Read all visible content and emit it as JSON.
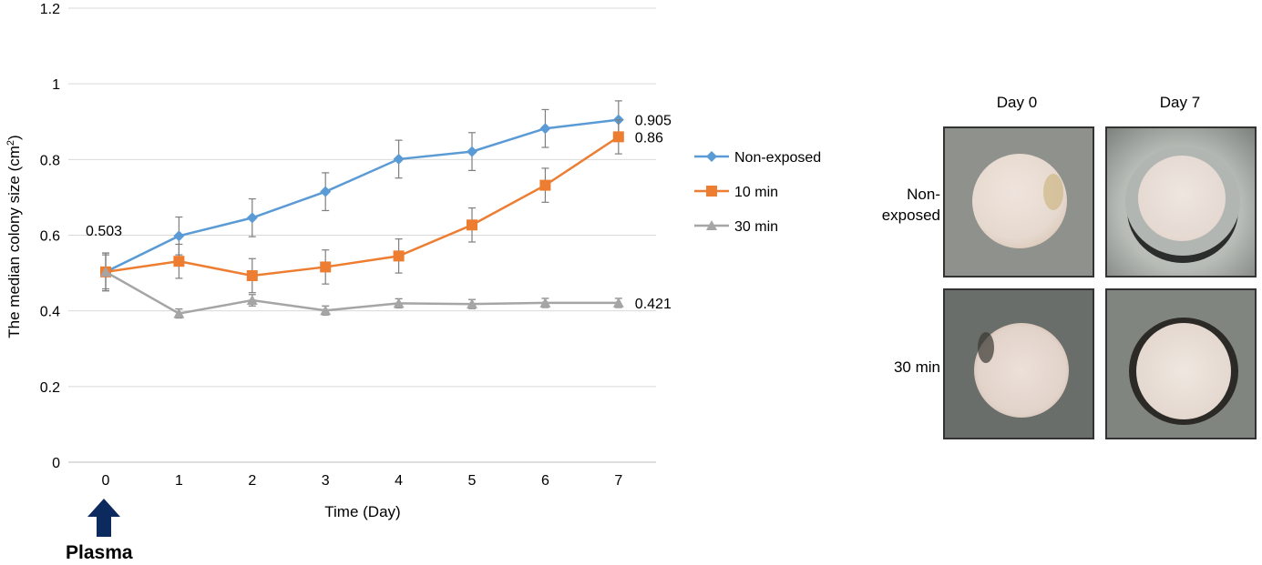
{
  "chart_data": {
    "type": "line",
    "xlabel": "Time (Day)",
    "ylabel_main": "The median colony size (cm",
    "ylabel_sup": "2",
    "ylabel_end": ")",
    "x": [
      0,
      1,
      2,
      3,
      4,
      5,
      6,
      7
    ],
    "ylim": [
      0,
      1.2
    ],
    "yticks": [
      0,
      0.2,
      0.4,
      0.6,
      0.8,
      1,
      1.2
    ],
    "ytick_labels": [
      "0",
      "0.2",
      "0.4",
      "0.6",
      "0.8",
      "1",
      "1.2"
    ],
    "xtick_labels": [
      "0",
      "1",
      "2",
      "3",
      "4",
      "5",
      "6",
      "7"
    ],
    "grid": true,
    "legend_position": "right",
    "series": [
      {
        "name": "Non-exposed",
        "color": "#5b9bd5",
        "marker": "diamond",
        "values": [
          0.503,
          0.598,
          0.646,
          0.715,
          0.801,
          0.821,
          0.882,
          0.905
        ],
        "errors": [
          0.05,
          0.05,
          0.05,
          0.05,
          0.05,
          0.05,
          0.05,
          0.05
        ]
      },
      {
        "name": "10 min",
        "color": "#ed7d31",
        "marker": "square",
        "values": [
          0.503,
          0.531,
          0.493,
          0.516,
          0.545,
          0.627,
          0.732,
          0.86
        ],
        "errors": [
          0.05,
          0.045,
          0.045,
          0.045,
          0.045,
          0.045,
          0.045,
          0.045
        ]
      },
      {
        "name": "30 min",
        "color": "#a5a5a5",
        "marker": "triangle",
        "values": [
          0.503,
          0.393,
          0.428,
          0.401,
          0.42,
          0.418,
          0.421,
          0.421
        ],
        "errors": [
          0.045,
          0.012,
          0.015,
          0.012,
          0.012,
          0.012,
          0.012,
          0.012
        ]
      }
    ],
    "data_labels": [
      {
        "text": "0.503",
        "x": 0,
        "y": 0.503,
        "series": 0
      },
      {
        "text": "0.905",
        "x": 7,
        "y": 0.905,
        "series": 0
      },
      {
        "text": "0.86",
        "x": 7,
        "y": 0.86,
        "series": 1
      },
      {
        "text": "0.421",
        "x": 7,
        "y": 0.421,
        "series": 2
      }
    ]
  },
  "annotation": {
    "label": "Plasma",
    "arrow_color": "#0d2a5e"
  },
  "photos": {
    "col_labels": [
      "Day 0",
      "Day 7"
    ],
    "row_labels": [
      "Non-\nexposed",
      "30 min"
    ]
  }
}
